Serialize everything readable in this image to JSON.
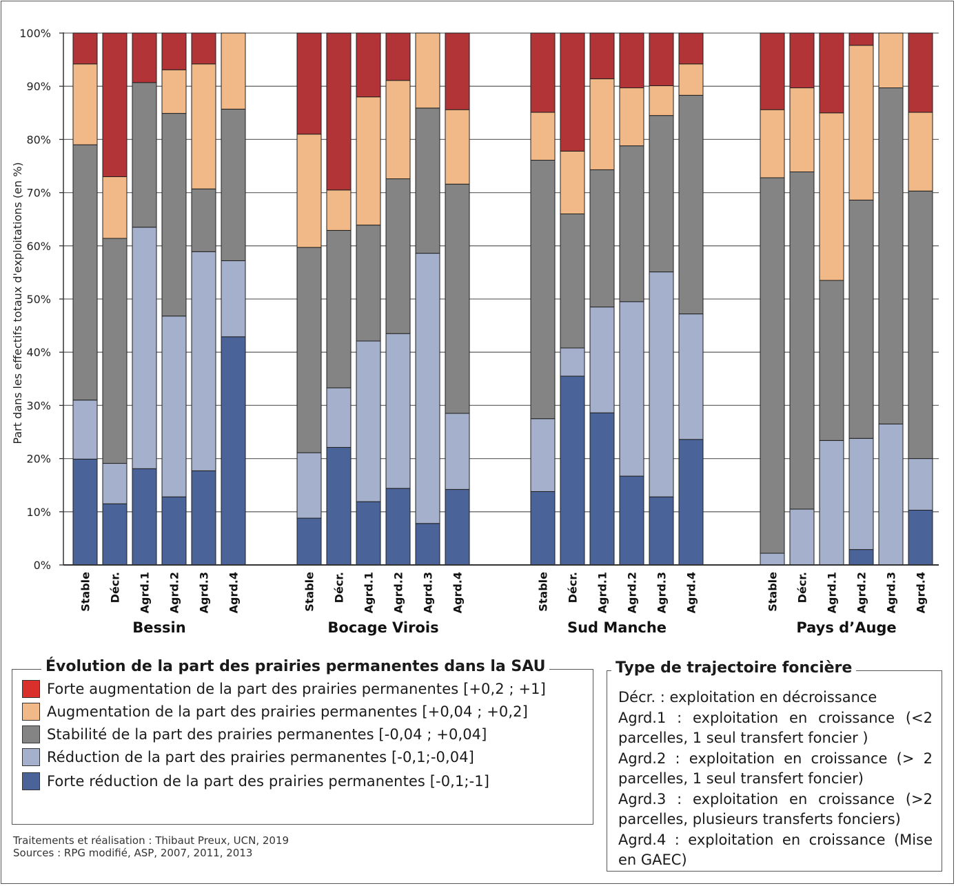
{
  "chart_data": {
    "type": "bar",
    "stacked": true,
    "ylabel": "Part dans les effectifs totaux d'exploitations (en %)",
    "ylim": [
      0,
      100
    ],
    "yticks": [
      "0%",
      "10%",
      "20%",
      "30%",
      "40%",
      "50%",
      "60%",
      "70%",
      "80%",
      "90%",
      "100%"
    ],
    "grid": true,
    "series_order": [
      "forte_reduction",
      "reduction",
      "stabilite",
      "augmentation",
      "forte_augmentation"
    ],
    "colors": {
      "forte_reduction": "#4a6399",
      "reduction": "#a5b1cc",
      "stabilite": "#848484",
      "augmentation": "#f0b987",
      "forte_augmentation": "#b33437"
    },
    "groups": [
      {
        "name": "Bessin",
        "bars": [
          {
            "label": "Stable",
            "values": [
              19.9,
              11.1,
              48.0,
              15.2,
              5.8
            ]
          },
          {
            "label": "Décr.",
            "values": [
              11.5,
              7.6,
              42.3,
              11.6,
              27.0
            ]
          },
          {
            "label": "Agrd.1",
            "values": [
              18.1,
              45.4,
              27.2,
              0.0,
              9.3
            ]
          },
          {
            "label": "Agrd.2",
            "values": [
              12.8,
              34.0,
              38.1,
              8.2,
              6.9
            ]
          },
          {
            "label": "Agrd.3",
            "values": [
              17.7,
              41.2,
              11.8,
              23.5,
              5.8
            ]
          },
          {
            "label": "Agrd.4",
            "values": [
              42.9,
              14.3,
              28.5,
              14.3,
              0.0
            ]
          }
        ]
      },
      {
        "name": "Bocage Virois",
        "bars": [
          {
            "label": "Stable",
            "values": [
              8.8,
              12.3,
              38.6,
              21.3,
              19.0
            ]
          },
          {
            "label": "Décr.",
            "values": [
              22.1,
              11.2,
              29.6,
              7.6,
              29.5
            ]
          },
          {
            "label": "Agrd.1",
            "values": [
              11.9,
              30.2,
              21.8,
              24.1,
              12.0
            ]
          },
          {
            "label": "Agrd.2",
            "values": [
              14.4,
              29.1,
              29.1,
              18.5,
              8.9
            ]
          },
          {
            "label": "Agrd.3",
            "values": [
              7.8,
              50.8,
              27.3,
              14.1,
              0.0
            ]
          },
          {
            "label": "Agrd.4",
            "values": [
              14.2,
              14.3,
              43.1,
              14.0,
              14.4
            ]
          }
        ]
      },
      {
        "name": "Sud Manche",
        "bars": [
          {
            "label": "Stable",
            "values": [
              13.8,
              13.7,
              48.6,
              9.0,
              14.9
            ]
          },
          {
            "label": "Décr.",
            "values": [
              35.5,
              5.3,
              25.2,
              11.8,
              22.2
            ]
          },
          {
            "label": "Agrd.1",
            "values": [
              28.6,
              19.9,
              25.8,
              17.1,
              8.6
            ]
          },
          {
            "label": "Agrd.2",
            "values": [
              16.7,
              32.8,
              29.3,
              10.9,
              10.3
            ]
          },
          {
            "label": "Agrd.3",
            "values": [
              12.8,
              42.3,
              29.4,
              5.6,
              9.9
            ]
          },
          {
            "label": "Agrd.4",
            "values": [
              23.6,
              23.6,
              41.1,
              5.9,
              5.8
            ]
          }
        ]
      },
      {
        "name": "Pays d’Auge",
        "bars": [
          {
            "label": "Stable",
            "values": [
              0.0,
              2.2,
              70.6,
              12.8,
              14.4
            ]
          },
          {
            "label": "Décr.",
            "values": [
              0.0,
              10.5,
              63.4,
              15.8,
              10.3
            ]
          },
          {
            "label": "Agrd.1",
            "values": [
              0.0,
              23.4,
              30.1,
              31.5,
              15.0
            ]
          },
          {
            "label": "Agrd.2",
            "values": [
              2.9,
              20.9,
              44.8,
              29.1,
              2.3
            ]
          },
          {
            "label": "Agrd.3",
            "values": [
              0.0,
              26.5,
              63.2,
              10.3,
              0.0
            ]
          },
          {
            "label": "Agrd.4",
            "values": [
              10.3,
              9.7,
              50.3,
              14.8,
              14.9
            ]
          }
        ]
      }
    ]
  },
  "legend_pp": {
    "title": "Évolution de la part des prairies permanentes dans la SAU",
    "items": [
      {
        "key": "forte_augmentation",
        "label": "Forte augmentation de la part des prairies permanentes [+0,2 ; +1]"
      },
      {
        "key": "augmentation",
        "label": "Augmentation de la part des prairies permanentes [+0,04 ; +0,2]"
      },
      {
        "key": "stabilite",
        "label": "Stabilité de la part des prairies permanentes [-0,04 ; +0,04]"
      },
      {
        "key": "reduction",
        "label": "Réduction de la part des prairies permanentes [-0,1;-0,04]"
      },
      {
        "key": "forte_reduction",
        "label": "Forte réduction de la part des prairies permanentes [-0,1;-1]"
      }
    ]
  },
  "legend_traj": {
    "title": "Type de trajectoire foncière",
    "lines": [
      "Décr. : exploitation en décroissance",
      "Agrd.1 : exploitation en croissance (<2 parcelles, 1 seul transfert foncier )",
      "Agrd.2 : exploitation en croissance (> 2 parcelles, 1 seul transfert foncier)",
      "Agrd.3 : exploitation en croissance (>2 parcelles, plusieurs transferts fonciers)",
      "Agrd.4 : exploitation en croissance (Mise en GAEC)"
    ]
  },
  "credits": {
    "line1": "Traitements et réalisation : Thibaut Preux, UCN, 2019",
    "line2": "Sources : RPG modifié, ASP, 2007, 2011, 2013"
  }
}
